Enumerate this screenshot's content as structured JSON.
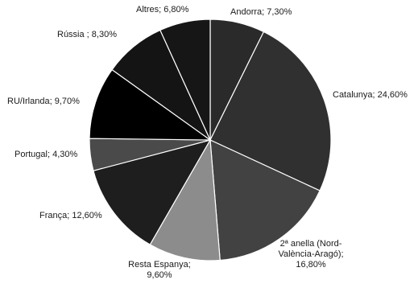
{
  "chart_data": {
    "type": "pie",
    "slices": [
      {
        "label": "Andorra",
        "display": "Andorra; 7,30%",
        "value": 7.3,
        "color": "#2a2a2a"
      },
      {
        "label": "Catalunya",
        "display": "Catalunya; 24,60%",
        "value": 24.6,
        "color": "#303030"
      },
      {
        "label": "2ª anella (Nord-València-Aragó)",
        "display": [
          "2ª anella (Nord-",
          "València-Aragó);",
          "16,80%"
        ],
        "value": 16.8,
        "color": "#424242"
      },
      {
        "label": "Resta Espanya",
        "display": [
          "Resta Espanya;",
          "9,60%"
        ],
        "value": 9.6,
        "color": "#8c8c8c"
      },
      {
        "label": "França",
        "display": "França; 12,60%",
        "value": 12.6,
        "color": "#1e1e1e"
      },
      {
        "label": "Portugal",
        "display": "Portugal; 4,30%",
        "value": 4.3,
        "color": "#4a4a4a"
      },
      {
        "label": "RU/Irlanda",
        "display": "RU/Irlanda; 9,70%",
        "value": 9.7,
        "color": "#000000"
      },
      {
        "label": "Rússia",
        "display": "Rússia ; 8,30%",
        "value": 8.3,
        "color": "#141414"
      },
      {
        "label": "Altres",
        "display": "Altres; 6,80%",
        "value": 6.8,
        "color": "#161616"
      }
    ]
  }
}
